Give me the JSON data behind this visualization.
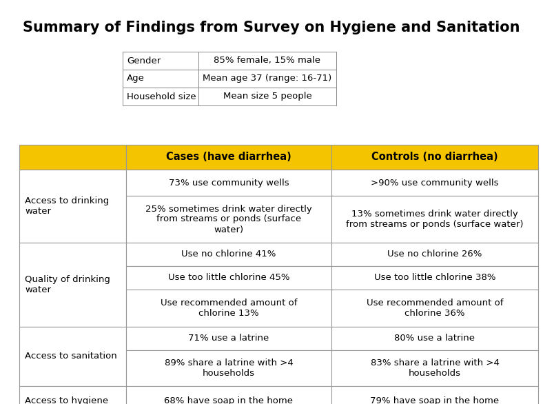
{
  "title": "Summary of Findings from Survey on Hygiene and Sanitation",
  "bg": "#ffffff",
  "title_fontsize": 15,
  "title_fontweight": "bold",
  "title_font": "DejaVu Sans",
  "demo_rows": [
    [
      "Gender",
      "85% female, 15% male"
    ],
    [
      "Age",
      "Mean age 37 (range: 16-71)"
    ],
    [
      "Household size",
      "Mean size 5 people"
    ]
  ],
  "header_bg": "#F5C400",
  "header_text_color": "#000000",
  "header_fontsize": 10.5,
  "header_fontweight": "bold",
  "header": [
    "",
    "Cases (have diarrhea)",
    "Controls (no diarrhea)"
  ],
  "cell_fontsize": 9.5,
  "cell_bg": "#ffffff",
  "border_color": "#999999",
  "border_lw": 0.8,
  "rows": [
    {
      "category": "Access to drinking\nwater",
      "sub_rows": [
        [
          "73% use community wells",
          ">90% use community wells"
        ],
        [
          "25% sometimes drink water directly\nfrom streams or ponds (surface\nwater)",
          "13% sometimes drink water directly\nfrom streams or ponds (surface water)"
        ]
      ]
    },
    {
      "category": "Quality of drinking\nwater",
      "sub_rows": [
        [
          "Use no chlorine 41%",
          "Use no chlorine 26%"
        ],
        [
          "Use too little chlorine 45%",
          "Use too little chlorine 38%"
        ],
        [
          "Use recommended amount of\nchlorine 13%",
          "Use recommended amount of\nchlorine 36%"
        ]
      ]
    },
    {
      "category": "Access to sanitation",
      "sub_rows": [
        [
          "71% use a latrine",
          "80% use a latrine"
        ],
        [
          "89% share a latrine with >4\nhouseholds",
          "83% share a latrine with >4\nhouseholds"
        ]
      ]
    },
    {
      "category": "Access to hygiene",
      "sub_rows": [
        [
          "68% have soap in the home",
          "79% have soap in the home"
        ]
      ]
    }
  ]
}
